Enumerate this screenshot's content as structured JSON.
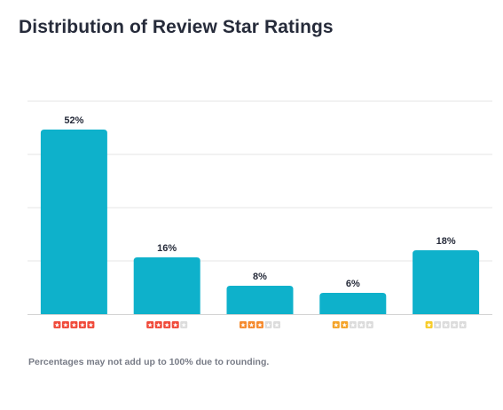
{
  "chart_data": {
    "type": "bar",
    "title": "Distribution of Review Star Ratings",
    "categories": [
      "5 stars",
      "4 stars",
      "3 stars",
      "2 stars",
      "1 star"
    ],
    "star_counts": [
      5,
      4,
      3,
      2,
      1
    ],
    "values": [
      52,
      16,
      8,
      6,
      18
    ],
    "value_labels": [
      "52%",
      "16%",
      "8%",
      "6%",
      "18%"
    ],
    "ylim": [
      0,
      60
    ],
    "grid": true,
    "bar_color": "#0eb1cb",
    "star_colors": [
      "#f04a3a",
      "#f04a3a",
      "#f58a2e",
      "#f4a328",
      "#f7cc2a"
    ],
    "empty_star_color": "#dcdcdc"
  },
  "footnote": "Percentages may not add up to 100% due to rounding."
}
